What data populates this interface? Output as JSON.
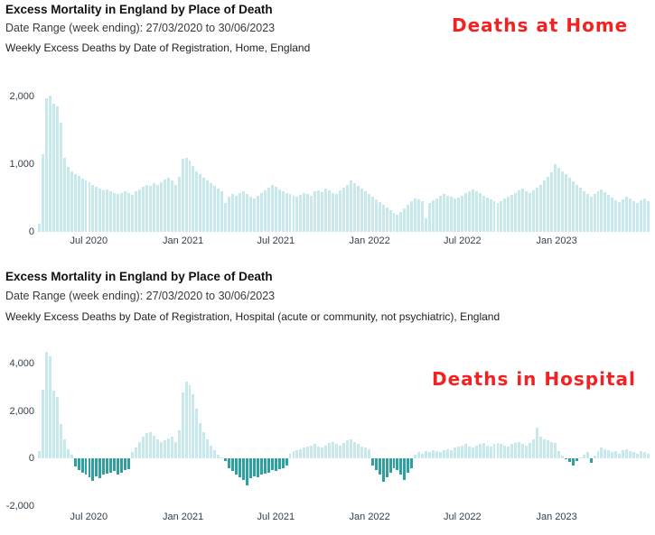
{
  "annotation_color": "#f32121",
  "chart_data": [
    {
      "type": "bar",
      "title": "Excess Mortality in England by Place of Death",
      "subtitle": "Date Range (week ending): 27/03/2020 to 30/06/2023",
      "caption": "Weekly Excess Deaths by Date of Registration, Home, England",
      "annotation": "Deaths at Home",
      "n_weeks": 171,
      "ylim": [
        0,
        2160
      ],
      "y_tick_values": [
        2000,
        1000,
        0
      ],
      "y_tick_labels": [
        "2,000",
        "1,000",
        "0"
      ],
      "x_ticks": [
        {
          "week": 13.7,
          "label": "Jul 2020"
        },
        {
          "week": 40.0,
          "label": "Jan 2021"
        },
        {
          "week": 65.9,
          "label": "Jul 2021"
        },
        {
          "week": 92.1,
          "label": "Jan 2022"
        },
        {
          "week": 118.0,
          "label": "Jul 2022"
        },
        {
          "week": 144.3,
          "label": "Jan 2023"
        }
      ],
      "colors": {
        "positive": "#c7e9ec",
        "negative": "#2fa0a0"
      },
      "values": [
        120,
        1150,
        1980,
        2020,
        1900,
        1860,
        1610,
        1090,
        960,
        900,
        860,
        830,
        790,
        760,
        730,
        700,
        670,
        640,
        610,
        630,
        600,
        570,
        560,
        580,
        600,
        570,
        550,
        600,
        630,
        670,
        700,
        680,
        720,
        700,
        740,
        770,
        800,
        760,
        700,
        820,
        1080,
        1100,
        1050,
        980,
        900,
        850,
        800,
        760,
        720,
        680,
        640,
        600,
        430,
        520,
        560,
        540,
        580,
        600,
        560,
        520,
        490,
        530,
        570,
        610,
        650,
        700,
        670,
        630,
        600,
        580,
        560,
        540,
        520,
        550,
        580,
        560,
        540,
        600,
        620,
        590,
        640,
        610,
        580,
        560,
        620,
        650,
        700,
        760,
        720,
        680,
        640,
        600,
        560,
        520,
        480,
        440,
        400,
        360,
        320,
        280,
        250,
        300,
        350,
        400,
        450,
        500,
        480,
        460,
        200,
        430,
        470,
        500,
        530,
        560,
        540,
        520,
        490,
        510,
        540,
        570,
        600,
        630,
        600,
        570,
        540,
        510,
        480,
        450,
        430,
        460,
        490,
        520,
        550,
        580,
        610,
        640,
        600,
        570,
        620,
        660,
        700,
        760,
        820,
        880,
        1000,
        950,
        900,
        850,
        800,
        750,
        700,
        650,
        600,
        560,
        520,
        560,
        600,
        630,
        590,
        550,
        510,
        470,
        440,
        480,
        520,
        490,
        460,
        430,
        470,
        500,
        460
      ]
    },
    {
      "type": "bar",
      "title": "Excess Mortality in England by Place of Death",
      "subtitle": "Date Range (week ending): 27/03/2020 to 30/06/2023",
      "caption": "Weekly Excess Deaths by Date of Registration, Hospital (acute or community, not psychiatric), England",
      "annotation": "Deaths in Hospital",
      "n_weeks": 171,
      "ylim": [
        -2095,
        4800
      ],
      "y_tick_values": [
        4000,
        2000,
        0,
        -2000
      ],
      "y_tick_labels": [
        "4,000",
        "2,000",
        "0",
        "-2,000"
      ],
      "x_ticks": [
        {
          "week": 13.7,
          "label": "Jul 2020"
        },
        {
          "week": 40.0,
          "label": "Jan 2021"
        },
        {
          "week": 65.9,
          "label": "Jul 2021"
        },
        {
          "week": 92.1,
          "label": "Jan 2022"
        },
        {
          "week": 118.0,
          "label": "Jul 2022"
        },
        {
          "week": 144.3,
          "label": "Jan 2023"
        }
      ],
      "colors": {
        "positive": "#c7e9ec",
        "negative": "#2fa0a0"
      },
      "values": [
        300,
        2900,
        4500,
        4300,
        2850,
        2600,
        1450,
        800,
        400,
        150,
        -350,
        -500,
        -600,
        -700,
        -800,
        -950,
        -750,
        -850,
        -700,
        -650,
        -600,
        -550,
        -700,
        -600,
        -500,
        -450,
        250,
        450,
        700,
        900,
        1050,
        1100,
        950,
        800,
        700,
        750,
        850,
        900,
        700,
        1200,
        2800,
        3250,
        3100,
        2700,
        2100,
        1500,
        1100,
        800,
        550,
        350,
        150,
        0,
        -100,
        -400,
        -550,
        -700,
        -800,
        -900,
        -1150,
        -850,
        -750,
        -800,
        -700,
        -650,
        -600,
        -500,
        -550,
        -450,
        -400,
        -300,
        200,
        300,
        350,
        400,
        450,
        500,
        550,
        600,
        500,
        450,
        550,
        650,
        700,
        600,
        550,
        650,
        750,
        800,
        700,
        600,
        500,
        450,
        400,
        -300,
        -500,
        -700,
        -1000,
        -800,
        -600,
        -400,
        -500,
        -700,
        -900,
        -600,
        -400,
        150,
        250,
        200,
        300,
        250,
        350,
        300,
        250,
        350,
        400,
        350,
        450,
        500,
        550,
        600,
        500,
        450,
        550,
        600,
        650,
        550,
        500,
        600,
        650,
        600,
        550,
        500,
        600,
        650,
        700,
        600,
        550,
        650,
        800,
        1300,
        900,
        800,
        750,
        700,
        650,
        300,
        100,
        -50,
        -150,
        -300,
        -100,
        50,
        150,
        250,
        -200,
        100,
        300,
        450,
        400,
        350,
        250,
        300,
        200,
        350,
        400,
        300,
        250,
        200,
        300,
        250,
        200
      ]
    }
  ]
}
